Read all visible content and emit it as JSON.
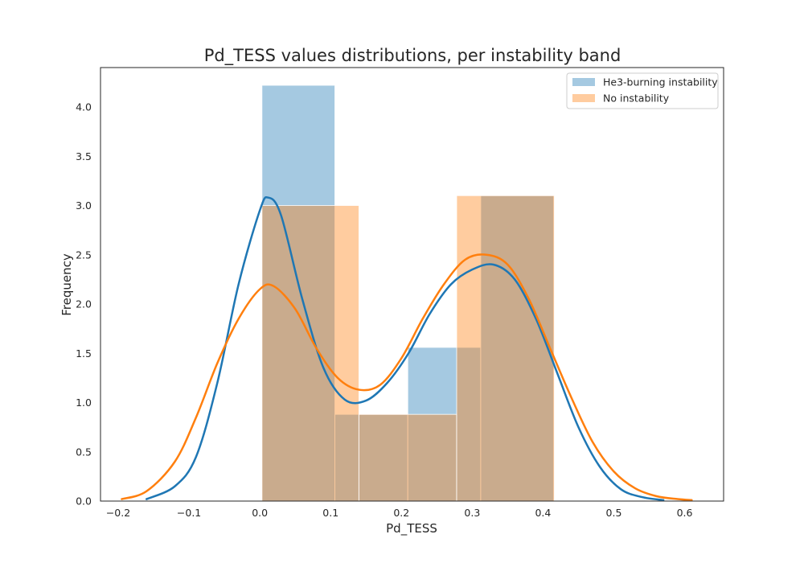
{
  "chart_data": {
    "type": "bar",
    "subtype": "histogram-with-kde",
    "title": "Pd_TESS values distributions, per instability band",
    "xlabel": "Pd_TESS",
    "ylabel": "Frequency",
    "xlim": [
      -0.225,
      0.655
    ],
    "ylim": [
      0,
      4.4
    ],
    "xticks": [
      -0.2,
      -0.1,
      0.0,
      0.1,
      0.2,
      0.3,
      0.4,
      0.5,
      0.6
    ],
    "xtick_labels": [
      "−0.2",
      "−0.1",
      "0.0",
      "0.1",
      "0.2",
      "0.3",
      "0.4",
      "0.5",
      "0.6"
    ],
    "yticks": [
      0.0,
      0.5,
      1.0,
      1.5,
      2.0,
      2.5,
      3.0,
      3.5,
      4.0
    ],
    "ytick_labels": [
      "0.0",
      "0.5",
      "1.0",
      "1.5",
      "2.0",
      "2.5",
      "3.0",
      "3.5",
      "4.0"
    ],
    "grid": false,
    "legend_position": "top-right",
    "series": [
      {
        "name": "He3-burning instability",
        "color": "#1f77b4",
        "bar_opacity": 0.4,
        "bins": [
          {
            "x0": 0.003,
            "x1": 0.106,
            "y": 4.22
          },
          {
            "x0": 0.106,
            "x1": 0.209,
            "y": 0.88
          },
          {
            "x0": 0.209,
            "x1": 0.312,
            "y": 1.56
          },
          {
            "x0": 0.312,
            "x1": 0.415,
            "y": 3.1
          }
        ],
        "kde": {
          "x": [
            -0.16,
            -0.12,
            -0.09,
            -0.06,
            -0.03,
            0.0,
            0.012,
            0.03,
            0.06,
            0.09,
            0.12,
            0.15,
            0.18,
            0.21,
            0.24,
            0.27,
            0.3,
            0.33,
            0.36,
            0.39,
            0.42,
            0.45,
            0.48,
            0.51,
            0.54,
            0.57
          ],
          "y": [
            0.02,
            0.15,
            0.45,
            1.2,
            2.2,
            2.95,
            3.08,
            2.9,
            2.05,
            1.35,
            1.03,
            1.02,
            1.2,
            1.5,
            1.9,
            2.2,
            2.35,
            2.4,
            2.25,
            1.85,
            1.3,
            0.75,
            0.35,
            0.12,
            0.04,
            0.01
          ]
        }
      },
      {
        "name": "No instability",
        "color": "#ff7f0e",
        "bar_opacity": 0.4,
        "bins": [
          {
            "x0": 0.003,
            "x1": 0.14,
            "y": 3.0
          },
          {
            "x0": 0.14,
            "x1": 0.278,
            "y": 0.88
          },
          {
            "x0": 0.278,
            "x1": 0.416,
            "y": 3.1
          }
        ],
        "kde": {
          "x": [
            -0.195,
            -0.16,
            -0.12,
            -0.09,
            -0.06,
            -0.03,
            0.0,
            0.02,
            0.05,
            0.08,
            0.11,
            0.14,
            0.17,
            0.2,
            0.23,
            0.26,
            0.29,
            0.32,
            0.35,
            0.38,
            0.41,
            0.44,
            0.47,
            0.5,
            0.53,
            0.56,
            0.59,
            0.61
          ],
          "y": [
            0.02,
            0.1,
            0.4,
            0.85,
            1.4,
            1.85,
            2.15,
            2.18,
            1.95,
            1.55,
            1.25,
            1.13,
            1.18,
            1.45,
            1.85,
            2.2,
            2.45,
            2.5,
            2.4,
            2.05,
            1.55,
            1.05,
            0.6,
            0.3,
            0.13,
            0.05,
            0.02,
            0.01
          ]
        }
      }
    ]
  }
}
